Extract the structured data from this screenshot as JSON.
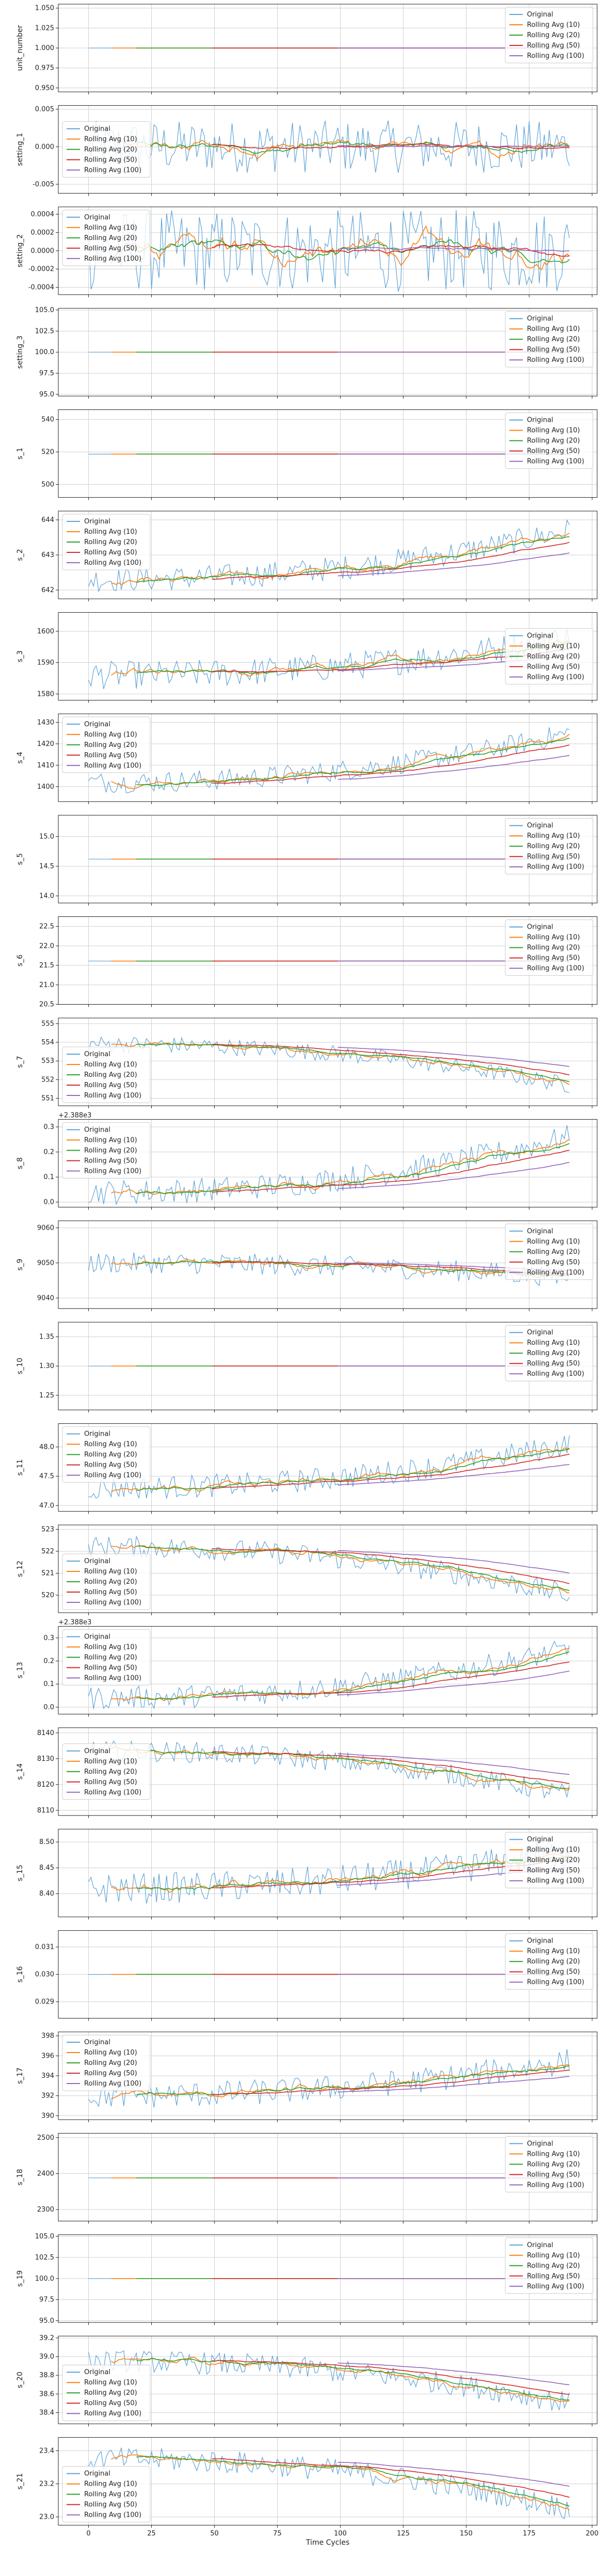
{
  "figure": {
    "xlabel": "Time Cycles"
  },
  "legend_entries": [
    "Original",
    "Rolling Avg (10)",
    "Rolling Avg (20)",
    "Rolling Avg (50)",
    "Rolling Avg (100)"
  ],
  "series_colors": [
    "#5fa3d6",
    "#ff7f0e",
    "#2ca02c",
    "#d62728",
    "#9467bd"
  ],
  "x_ticks": [
    0,
    25,
    50,
    75,
    100,
    125,
    150,
    175,
    200
  ],
  "x_range": [
    -12,
    202
  ],
  "chart_data": [
    {
      "type": "line",
      "ylabel": "unit_number",
      "kind": "const",
      "value": 1.0,
      "ylim": [
        0.945,
        1.055
      ],
      "ticks": [
        "0.950",
        "0.975",
        "1.000",
        "1.025",
        "1.050"
      ],
      "tickvals": [
        0.95,
        0.975,
        1.0,
        1.025,
        1.05
      ],
      "legend": "top-right"
    },
    {
      "type": "line",
      "ylabel": "setting_1",
      "kind": "noise",
      "center": 0.0,
      "amp": 0.0035,
      "ylim": [
        -0.0062,
        0.0055
      ],
      "ticks": [
        "0.005",
        "0.000",
        "-0.005"
      ],
      "tickvals": [
        0.005,
        0.0,
        -0.005
      ],
      "legend": "middle-left"
    },
    {
      "type": "line",
      "ylabel": "setting_2",
      "kind": "noise",
      "center": 0.0,
      "amp": 0.00045,
      "ylim": [
        -0.00048,
        0.00048
      ],
      "ticks": [
        "0.0004",
        "0.0002",
        "0.0000",
        "-0.0002",
        "-0.0004"
      ],
      "tickvals": [
        0.0004,
        0.0002,
        0.0,
        -0.0002,
        -0.0004
      ],
      "legend": "top-left"
    },
    {
      "type": "line",
      "ylabel": "setting_3",
      "kind": "const",
      "value": 100.0,
      "ylim": [
        94.8,
        105.2
      ],
      "ticks": [
        "105.0",
        "102.5",
        "100.0",
        "97.5",
        "95.0"
      ],
      "tickvals": [
        105,
        102.5,
        100,
        97.5,
        95
      ],
      "legend": "top-right"
    },
    {
      "type": "line",
      "ylabel": "s_1",
      "kind": "const",
      "value": 518.67,
      "ylim": [
        492,
        546
      ],
      "ticks": [
        "540",
        "520",
        "500"
      ],
      "tickvals": [
        540,
        520,
        500
      ],
      "legend": "top-right"
    },
    {
      "type": "line",
      "ylabel": "s_2",
      "kind": "trend",
      "start": 642.3,
      "end": 643.7,
      "amp": 0.35,
      "dir": 1,
      "ylim": [
        641.75,
        644.25
      ],
      "ticks": [
        "644",
        "643",
        "642"
      ],
      "tickvals": [
        644,
        643,
        642
      ],
      "legend": "top-left"
    },
    {
      "type": "line",
      "ylabel": "s_3",
      "kind": "trend",
      "start": 1586,
      "end": 1598,
      "amp": 4.5,
      "dir": 1,
      "ylim": [
        1578,
        1606
      ],
      "ticks": [
        "1600",
        "1590",
        "1580"
      ],
      "tickvals": [
        1600,
        1590,
        1580
      ],
      "legend": "middle-right"
    },
    {
      "type": "line",
      "ylabel": "s_4",
      "kind": "trend",
      "start": 1402,
      "end": 1425,
      "amp": 5,
      "dir": 1,
      "ylim": [
        1393,
        1434
      ],
      "ticks": [
        "1430",
        "1420",
        "1410",
        "1400"
      ],
      "tickvals": [
        1430,
        1420,
        1410,
        1400
      ],
      "legend": "top-left"
    },
    {
      "type": "line",
      "ylabel": "s_5",
      "kind": "const",
      "value": 14.62,
      "ylim": [
        13.88,
        15.36
      ],
      "ticks": [
        "15.0",
        "14.5",
        "14.0"
      ],
      "tickvals": [
        15.0,
        14.5,
        14.0
      ],
      "legend": "top-right"
    },
    {
      "type": "line",
      "ylabel": "s_6",
      "kind": "const",
      "value": 21.61,
      "ylim": [
        20.5,
        22.75
      ],
      "ticks": [
        "22.5",
        "22.0",
        "21.5",
        "21.0",
        "20.5"
      ],
      "tickvals": [
        22.5,
        22.0,
        21.5,
        21.0,
        20.5
      ],
      "legend": "top-right"
    },
    {
      "type": "line",
      "ylabel": "s_7",
      "kind": "trend",
      "start": 553.9,
      "end": 551.7,
      "amp": 0.45,
      "dir": -1,
      "ylim": [
        550.6,
        555.3
      ],
      "ticks": [
        "555",
        "554",
        "553",
        "552",
        "551"
      ],
      "tickvals": [
        555,
        554,
        553,
        552,
        551
      ],
      "legend": "bottom-left"
    },
    {
      "type": "line",
      "ylabel": "s_8",
      "kind": "trend",
      "start": 2388.04,
      "end": 2388.26,
      "amp": 0.05,
      "dir": 1,
      "offset": "+2.388e3",
      "base": 2388,
      "ylim": [
        2387.98,
        2388.33
      ],
      "ticks": [
        "0.3",
        "0.2",
        "0.1",
        "0.0"
      ],
      "tickvals": [
        2388.3,
        2388.2,
        2388.1,
        2388.0
      ],
      "legend": "top-left"
    },
    {
      "type": "line",
      "ylabel": "s_9",
      "kind": "trend",
      "start": 9050,
      "end": 9046,
      "amp": 3,
      "dir": -1,
      "ylim": [
        9037,
        9062
      ],
      "ticks": [
        "9060",
        "9050",
        "9040"
      ],
      "tickvals": [
        9060,
        9050,
        9040
      ],
      "legend": "top-right"
    },
    {
      "type": "line",
      "ylabel": "s_10",
      "kind": "const",
      "value": 1.3,
      "ylim": [
        1.225,
        1.375
      ],
      "ticks": [
        "1.35",
        "1.30",
        "1.25"
      ],
      "tickvals": [
        1.35,
        1.3,
        1.25
      ],
      "legend": "top-right"
    },
    {
      "type": "line",
      "ylabel": "s_11",
      "kind": "trend",
      "start": 47.3,
      "end": 48.05,
      "amp": 0.2,
      "dir": 1,
      "ylim": [
        46.9,
        48.4
      ],
      "ticks": [
        "48.0",
        "47.5",
        "47.0"
      ],
      "tickvals": [
        48.0,
        47.5,
        47.0
      ],
      "legend": "top-left"
    },
    {
      "type": "line",
      "ylabel": "s_12",
      "kind": "trend",
      "start": 522.2,
      "end": 520.0,
      "amp": 0.5,
      "dir": -1,
      "ylim": [
        519.2,
        523.2
      ],
      "ticks": [
        "523",
        "522",
        "521",
        "520"
      ],
      "tickvals": [
        523,
        522,
        521,
        520
      ],
      "legend": "bottom-left"
    },
    {
      "type": "line",
      "ylabel": "s_13",
      "kind": "trend",
      "start": 2388.04,
      "end": 2388.25,
      "amp": 0.05,
      "dir": 1,
      "offset": "+2.388e3",
      "base": 2388,
      "ylim": [
        2387.97,
        2388.35
      ],
      "ticks": [
        "0.3",
        "0.2",
        "0.1",
        "0.0"
      ],
      "tickvals": [
        2388.3,
        2388.2,
        2388.1,
        2388.0
      ],
      "legend": "top-left"
    },
    {
      "type": "line",
      "ylabel": "s_14",
      "kind": "trend",
      "start": 8133,
      "end": 8116,
      "amp": 4,
      "dir": -1,
      "ylim": [
        8108,
        8142
      ],
      "ticks": [
        "8140",
        "8130",
        "8120",
        "8110"
      ],
      "tickvals": [
        8140,
        8130,
        8120,
        8110
      ],
      "legend": "middle-left"
    },
    {
      "type": "line",
      "ylabel": "s_15",
      "kind": "trend",
      "start": 8.41,
      "end": 8.48,
      "amp": 0.03,
      "dir": 1,
      "ylim": [
        8.355,
        8.525
      ],
      "ticks": [
        "8.50",
        "8.45",
        "8.40"
      ],
      "tickvals": [
        8.5,
        8.45,
        8.4
      ],
      "legend": "top-right"
    },
    {
      "type": "line",
      "ylabel": "s_16",
      "kind": "const",
      "value": 0.03,
      "ylim": [
        0.0284,
        0.0316
      ],
      "ticks": [
        "0.031",
        "0.030",
        "0.029"
      ],
      "tickvals": [
        0.031,
        0.03,
        0.029
      ],
      "legend": "top-right"
    },
    {
      "type": "line",
      "ylabel": "s_17",
      "kind": "trend",
      "start": 392,
      "end": 395.5,
      "amp": 1.3,
      "dir": 1,
      "ylim": [
        389.6,
        398.4
      ],
      "ticks": [
        "398",
        "396",
        "394",
        "392",
        "390"
      ],
      "tickvals": [
        398,
        396,
        394,
        392,
        390
      ],
      "legend": "top-left"
    },
    {
      "type": "line",
      "ylabel": "s_18",
      "kind": "const",
      "value": 2388,
      "ylim": [
        2268,
        2512
      ],
      "ticks": [
        "2500",
        "2400",
        "2300"
      ],
      "tickvals": [
        2500,
        2400,
        2300
      ],
      "legend": "top-right"
    },
    {
      "type": "line",
      "ylabel": "s_19",
      "kind": "const",
      "value": 100.0,
      "ylim": [
        94.8,
        105.2
      ],
      "ticks": [
        "105.0",
        "102.5",
        "100.0",
        "97.5",
        "95.0"
      ],
      "tickvals": [
        105,
        102.5,
        100,
        97.5,
        95
      ],
      "legend": "top-right"
    },
    {
      "type": "line",
      "ylabel": "s_20",
      "kind": "trend",
      "start": 38.95,
      "end": 38.5,
      "amp": 0.12,
      "dir": -1,
      "ylim": [
        38.28,
        39.22
      ],
      "ticks": [
        "39.2",
        "39.0",
        "38.8",
        "38.6",
        "38.4"
      ],
      "tickvals": [
        39.2,
        39.0,
        38.8,
        38.6,
        38.4
      ],
      "legend": "bottom-left"
    },
    {
      "type": "line",
      "ylabel": "s_21",
      "kind": "trend",
      "start": 23.35,
      "end": 23.05,
      "amp": 0.07,
      "dir": -1,
      "ylim": [
        22.95,
        23.48
      ],
      "ticks": [
        "23.4",
        "23.2",
        "23.0"
      ],
      "tickvals": [
        23.4,
        23.2,
        23.0
      ],
      "legend": "bottom-left"
    }
  ]
}
